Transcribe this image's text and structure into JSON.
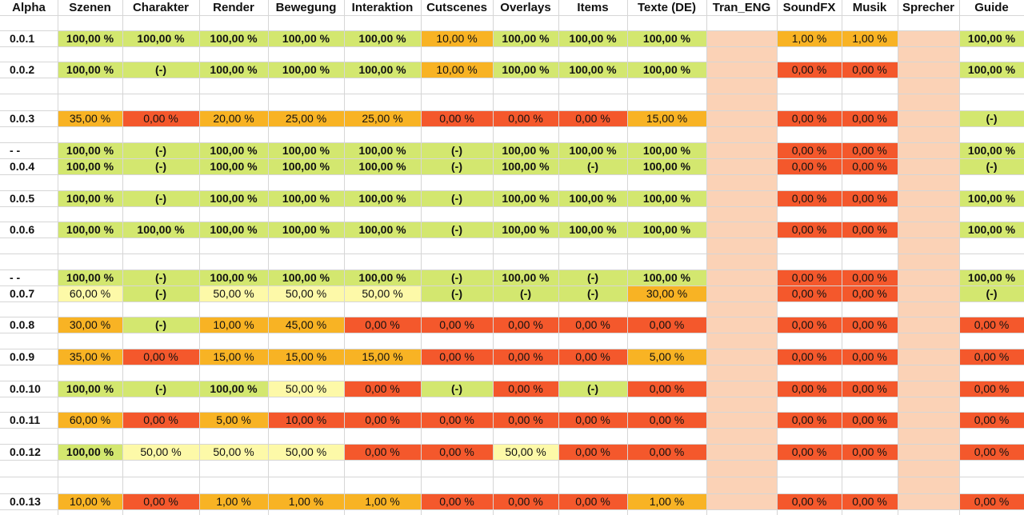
{
  "header": [
    "Alpha",
    "Szenen",
    "Charakter",
    "Render",
    "Bewegung",
    "Interaktion",
    "Cutscenes",
    "Overlays",
    "Items",
    "Texte (DE)",
    "Tran_ENG",
    "SoundFX",
    "Musik",
    "Sprecher",
    "Guide"
  ],
  "rows": [
    {
      "label": "0.0.1",
      "cells": [
        "100,00 %",
        "100,00 %",
        "100,00 %",
        "100,00 %",
        "100,00 %",
        "10,00 %",
        "100,00 %",
        "100,00 %",
        "100,00 %",
        null,
        "1,00 %",
        "1,00 %",
        null,
        "100,00 %"
      ]
    },
    {
      "label": "0.0.2",
      "cells": [
        "100,00 %",
        "(-)",
        "100,00 %",
        "100,00 %",
        "100,00 %",
        "10,00 %",
        "100,00 %",
        "100,00 %",
        "100,00 %",
        null,
        "0,00 %",
        "0,00 %",
        null,
        "100,00 %"
      ]
    },
    {
      "label": "0.0.3",
      "cells": [
        "35,00 %",
        "0,00 %",
        "20,00 %",
        "25,00 %",
        "25,00 %",
        "0,00 %",
        "0,00 %",
        "0,00 %",
        "15,00 %",
        null,
        "0,00 %",
        "0,00 %",
        null,
        "(-)"
      ]
    },
    {
      "label": "- -",
      "cells": [
        "100,00 %",
        "(-)",
        "100,00 %",
        "100,00 %",
        "100,00 %",
        "(-)",
        "100,00 %",
        "100,00 %",
        "100,00 %",
        null,
        "0,00 %",
        "0,00 %",
        null,
        "100,00 %"
      ]
    },
    {
      "label": "0.0.4",
      "cells": [
        "100,00 %",
        "(-)",
        "100,00 %",
        "100,00 %",
        "100,00 %",
        "(-)",
        "100,00 %",
        "(-)",
        "100,00 %",
        null,
        "0,00 %",
        "0,00 %",
        null,
        "(-)"
      ]
    },
    {
      "label": "0.0.5",
      "cells": [
        "100,00 %",
        "(-)",
        "100,00 %",
        "100,00 %",
        "100,00 %",
        "(-)",
        "100,00 %",
        "100,00 %",
        "100,00 %",
        null,
        "0,00 %",
        "0,00 %",
        null,
        "100,00 %"
      ]
    },
    {
      "label": "0.0.6",
      "cells": [
        "100,00 %",
        "100,00 %",
        "100,00 %",
        "100,00 %",
        "100,00 %",
        "(-)",
        "100,00 %",
        "100,00 %",
        "100,00 %",
        null,
        "0,00 %",
        "0,00 %",
        null,
        "100,00 %"
      ]
    },
    {
      "label": "- -",
      "cells": [
        "100,00 %",
        "(-)",
        "100,00 %",
        "100,00 %",
        "100,00 %",
        "(-)",
        "100,00 %",
        "(-)",
        "100,00 %",
        null,
        "0,00 %",
        "0,00 %",
        null,
        "100,00 %"
      ]
    },
    {
      "label": "0.0.7",
      "cells": [
        "60,00 %",
        "(-)",
        "50,00 %",
        "50,00 %",
        "50,00 %",
        "(-)",
        "(-)",
        "(-)",
        "30,00 %",
        null,
        "0,00 %",
        "0,00 %",
        null,
        "(-)"
      ]
    },
    {
      "label": "0.0.8",
      "cells": [
        "30,00 %",
        "(-)",
        "10,00 %",
        "45,00 %",
        "0,00 %",
        "0,00 %",
        "0,00 %",
        "0,00 %",
        "0,00 %",
        null,
        "0,00 %",
        "0,00 %",
        null,
        "0,00 %"
      ]
    },
    {
      "label": "0.0.9",
      "cells": [
        "35,00 %",
        "0,00 %",
        "15,00 %",
        "15,00 %",
        "15,00 %",
        "0,00 %",
        "0,00 %",
        "0,00 %",
        "5,00 %",
        null,
        "0,00 %",
        "0,00 %",
        null,
        "0,00 %"
      ]
    },
    {
      "label": "0.0.10",
      "cells": [
        "100,00 %",
        "(-)",
        "100,00 %",
        "50,00 %",
        "0,00 %",
        "(-)",
        "0,00 %",
        "(-)",
        "0,00 %",
        null,
        "0,00 %",
        "0,00 %",
        null,
        "0,00 %"
      ]
    },
    {
      "label": "0.0.11",
      "cells": [
        "60,00 %",
        "0,00 %",
        "5,00 %",
        "10,00 %",
        "0,00 %",
        "0,00 %",
        "0,00 %",
        "0,00 %",
        "0,00 %",
        null,
        "0,00 %",
        "0,00 %",
        null,
        "0,00 %"
      ]
    },
    {
      "label": "0.0.12",
      "cells": [
        "100,00 %",
        "50,00 %",
        "50,00 %",
        "50,00 %",
        "0,00 %",
        "0,00 %",
        "50,00 %",
        "0,00 %",
        "0,00 %",
        null,
        "0,00 %",
        "0,00 %",
        null,
        "0,00 %"
      ]
    },
    {
      "label": "0.0.13",
      "cells": [
        "10,00 %",
        "0,00 %",
        "1,00 %",
        "1,00 %",
        "1,00 %",
        "0,00 %",
        "0,00 %",
        "0,00 %",
        "1,00 %",
        null,
        "0,00 %",
        "0,00 %",
        null,
        "0,00 %"
      ]
    }
  ]
}
